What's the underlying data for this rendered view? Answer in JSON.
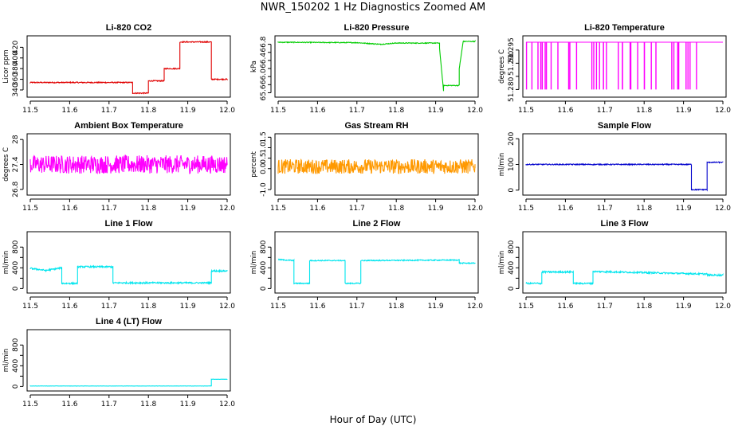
{
  "title": "NWR_150202  1 Hz Diagnostics Zoomed AM",
  "xlabel": "Hour of Day (UTC)",
  "chart_data": [
    {
      "type": "line",
      "title": "Li-820 CO2",
      "ylabel": "Licor ppm",
      "color": "#e00000",
      "xlim": [
        11.5,
        12.0
      ],
      "ylim": [
        331,
        437
      ],
      "yticks": [
        340,
        360,
        380,
        400,
        420
      ],
      "xticks": [
        11.5,
        11.6,
        11.7,
        11.8,
        11.9,
        12.0
      ],
      "x": [
        11.5,
        11.76,
        11.76,
        11.8,
        11.8,
        11.84,
        11.84,
        11.88,
        11.88,
        11.96,
        11.96,
        12.0
      ],
      "y": [
        354,
        354,
        334,
        334,
        357,
        357,
        380,
        380,
        430,
        430,
        360,
        360
      ],
      "noise": 1
    },
    {
      "type": "line",
      "title": "Li-820 Pressure",
      "ylabel": "kPa",
      "color": "#00cc00",
      "xlim": [
        11.5,
        12.0
      ],
      "ylim": [
        65.55,
        66.95
      ],
      "yticks": [
        65.6,
        65.8,
        66.0,
        66.2,
        66.4,
        66.6,
        66.8
      ],
      "ytick_labels": [
        "65.6",
        "",
        "66.0",
        "",
        "66.4",
        "",
        "66.8"
      ],
      "xticks": [
        11.5,
        11.6,
        11.7,
        11.8,
        11.9,
        12.0
      ],
      "x": [
        11.5,
        11.7,
        11.76,
        11.8,
        11.91,
        11.91,
        11.92,
        11.92,
        11.96,
        11.96,
        11.97,
        11.97,
        12.0
      ],
      "y": [
        66.85,
        66.84,
        66.8,
        66.83,
        66.83,
        66.7,
        65.65,
        65.78,
        65.78,
        66.2,
        66.88,
        66.87,
        66.87
      ],
      "noise": 0.01
    },
    {
      "type": "line",
      "title": "Li-820 Temperature",
      "ylabel": "degrees C",
      "color": "#ff00ff",
      "xlim": [
        11.5,
        12.0
      ],
      "ylim": [
        51.278,
        51.2995
      ],
      "yticks": [
        51.28,
        51.285,
        51.29,
        51.295
      ],
      "ytick_labels": [
        "51.280",
        "",
        "51.290",
        "51.295"
      ],
      "xticks": [
        11.5,
        11.6,
        11.7,
        11.8,
        11.9,
        12.0
      ],
      "x": [
        11.5,
        12.0
      ],
      "y": [
        51.298,
        51.298
      ],
      "spikes": {
        "low": 51.28,
        "xmin": 11.5,
        "xmax": 11.95,
        "count": 40
      }
    },
    {
      "type": "line",
      "title": "Ambient Box Temperature",
      "ylabel": "degrees C",
      "color": "#ff00ff",
      "xlim": [
        11.5,
        12.0
      ],
      "ylim": [
        26.72,
        28.08
      ],
      "yticks": [
        26.8,
        27.4,
        28.0
      ],
      "xticks": [
        11.5,
        11.6,
        11.7,
        11.8,
        11.9,
        12.0
      ],
      "x": [
        11.5,
        12.0
      ],
      "y": [
        27.4,
        27.4
      ],
      "noise": 0.22
    },
    {
      "type": "line",
      "title": "Gas Stream RH",
      "ylabel": "percent",
      "color": "#ff9900",
      "xlim": [
        11.5,
        12.0
      ],
      "ylim": [
        -1.15,
        1.55
      ],
      "yticks": [
        -1.0,
        0.0,
        0.5,
        1.0,
        1.5
      ],
      "ytick_labels": [
        "-1.0",
        "0.0",
        "0.5",
        "1.0",
        "1.5"
      ],
      "xticks": [
        11.5,
        11.6,
        11.7,
        11.8,
        11.9,
        12.0
      ],
      "x": [
        11.5,
        12.0
      ],
      "y": [
        0.1,
        0.1
      ],
      "noise": 0.35
    },
    {
      "type": "line",
      "title": "Sample Flow",
      "ylabel": "ml/min",
      "color": "#0000cc",
      "xlim": [
        11.5,
        12.0
      ],
      "ylim": [
        -10,
        210
      ],
      "yticks": [
        0,
        100,
        200
      ],
      "xticks": [
        11.5,
        11.6,
        11.7,
        11.8,
        11.9,
        12.0
      ],
      "x": [
        11.5,
        11.92,
        11.92,
        11.96,
        11.96,
        12.0
      ],
      "y": [
        100,
        100,
        2,
        2,
        108,
        108
      ],
      "noise": 2
    },
    {
      "type": "line",
      "title": "Line 1 Flow",
      "ylabel": "ml/min",
      "color": "#00e5ee",
      "xlim": [
        11.5,
        12.0
      ],
      "ylim": [
        -40,
        1050
      ],
      "yticks": [
        0,
        200,
        400,
        600,
        800
      ],
      "ytick_labels": [
        "0",
        "",
        "400",
        "",
        "800"
      ],
      "xticks": [
        11.5,
        11.6,
        11.7,
        11.8,
        11.9,
        12.0
      ],
      "x": [
        11.5,
        11.54,
        11.58,
        11.58,
        11.62,
        11.62,
        11.71,
        11.71,
        11.96,
        11.96,
        12.0
      ],
      "y": [
        390,
        350,
        400,
        100,
        100,
        420,
        420,
        110,
        110,
        340,
        340
      ],
      "noise": 15
    },
    {
      "type": "line",
      "title": "Line 2 Flow",
      "ylabel": "ml/min",
      "color": "#00e5ee",
      "xlim": [
        11.5,
        12.0
      ],
      "ylim": [
        -40,
        1050
      ],
      "yticks": [
        0,
        200,
        400,
        600,
        800
      ],
      "ytick_labels": [
        "0",
        "",
        "400",
        "",
        "800"
      ],
      "xticks": [
        11.5,
        11.6,
        11.7,
        11.8,
        11.9,
        12.0
      ],
      "x": [
        11.5,
        11.54,
        11.54,
        11.58,
        11.58,
        11.67,
        11.67,
        11.71,
        11.71,
        11.96,
        11.96,
        12.0
      ],
      "y": [
        560,
        540,
        100,
        100,
        540,
        540,
        100,
        100,
        540,
        550,
        490,
        490
      ],
      "noise": 10
    },
    {
      "type": "line",
      "title": "Line 3 Flow",
      "ylabel": "ml/min",
      "color": "#00e5ee",
      "xlim": [
        11.5,
        12.0
      ],
      "ylim": [
        -40,
        1050
      ],
      "yticks": [
        0,
        200,
        400,
        600,
        800
      ],
      "ytick_labels": [
        "0",
        "",
        "400",
        "",
        "800"
      ],
      "xticks": [
        11.5,
        11.6,
        11.7,
        11.8,
        11.9,
        12.0
      ],
      "x": [
        11.5,
        11.54,
        11.54,
        11.62,
        11.62,
        11.67,
        11.67,
        11.96,
        11.96,
        12.0
      ],
      "y": [
        100,
        100,
        320,
        320,
        100,
        100,
        330,
        280,
        260,
        260
      ],
      "noise": 15
    },
    {
      "type": "line",
      "title": "Line 4 (LT) Flow",
      "ylabel": "ml/min",
      "color": "#00e5ee",
      "xlim": [
        11.5,
        12.0
      ],
      "ylim": [
        -40,
        1050
      ],
      "yticks": [
        0,
        200,
        400,
        600,
        800
      ],
      "ytick_labels": [
        "0",
        "",
        "400",
        "",
        "800"
      ],
      "xticks": [
        11.5,
        11.6,
        11.7,
        11.8,
        11.9,
        12.0
      ],
      "x": [
        11.5,
        11.96,
        11.96,
        12.0
      ],
      "y": [
        10,
        10,
        140,
        140
      ],
      "noise": 2
    }
  ]
}
